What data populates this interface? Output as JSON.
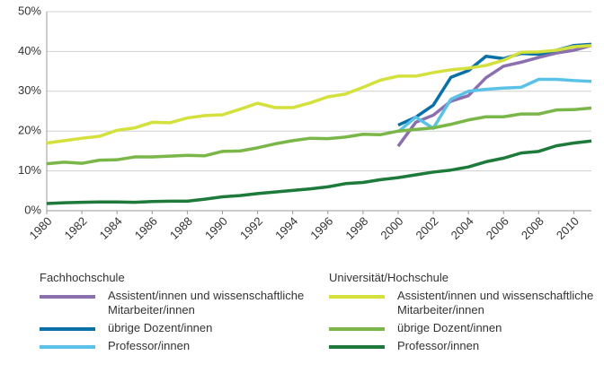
{
  "chart_data": {
    "type": "line",
    "x": [
      1980,
      1981,
      1982,
      1983,
      1984,
      1985,
      1986,
      1987,
      1988,
      1989,
      1990,
      1991,
      1992,
      1993,
      1994,
      1995,
      1996,
      1997,
      1998,
      1999,
      2000,
      2001,
      2002,
      2003,
      2004,
      2005,
      2006,
      2007,
      2008,
      2009,
      2010,
      2011
    ],
    "xlim": [
      1980,
      2011
    ],
    "xticks": [
      1980,
      1982,
      1984,
      1986,
      1988,
      1990,
      1992,
      1994,
      1996,
      1998,
      2000,
      2002,
      2004,
      2006,
      2008,
      2010
    ],
    "ylim": [
      0,
      50
    ],
    "yticks": [
      {
        "value": 0,
        "label": "0%"
      },
      {
        "value": 10,
        "label": "10%"
      },
      {
        "value": 20,
        "label": "20%"
      },
      {
        "value": 30,
        "label": "30%"
      },
      {
        "value": 40,
        "label": "40%"
      },
      {
        "value": 50,
        "label": "50%"
      }
    ],
    "grid": true,
    "series_groups": [
      {
        "name": "Fachhochschule",
        "series": [
          {
            "name": "Assistent/innen und wissenschaftliche Mitarbeiter/innen",
            "color": "#8b6fae",
            "values": [
              null,
              null,
              null,
              null,
              null,
              null,
              null,
              null,
              null,
              null,
              null,
              null,
              null,
              null,
              null,
              null,
              null,
              null,
              null,
              null,
              16.2,
              22.2,
              24,
              27.5,
              28.9,
              33.4,
              36.3,
              37.3,
              38.5,
              39.6,
              40.3,
              41.5
            ]
          },
          {
            "name": "übrige Dozent/innen",
            "color": "#0a71a8",
            "values": [
              null,
              null,
              null,
              null,
              null,
              null,
              null,
              null,
              null,
              null,
              null,
              null,
              null,
              null,
              null,
              null,
              null,
              null,
              null,
              null,
              21.5,
              23.5,
              26.5,
              33.5,
              35.2,
              38.8,
              38.2,
              39.5,
              39.3,
              40.3,
              41.5,
              41.8
            ]
          },
          {
            "name": "Professor/innen",
            "color": "#5bc2e7",
            "values": [
              null,
              null,
              null,
              null,
              null,
              null,
              null,
              null,
              null,
              null,
              null,
              null,
              null,
              null,
              null,
              null,
              null,
              null,
              null,
              null,
              19.8,
              23.5,
              20.7,
              28,
              30,
              30.5,
              30.8,
              31,
              33,
              33,
              32.7,
              32.5
            ]
          }
        ]
      },
      {
        "name": "Universität/Hochschule",
        "series": [
          {
            "name": "Assistent/innen und wissenschaftliche Mitarbeiter/innen",
            "color": "#d4e03c",
            "values": [
              17,
              17.6,
              18.2,
              18.7,
              20.2,
              20.8,
              22.2,
              22.1,
              23.3,
              23.9,
              24.1,
              25.5,
              27,
              25.9,
              25.9,
              27.1,
              28.6,
              29.3,
              31,
              32.8,
              33.8,
              33.8,
              34.7,
              35.4,
              35.8,
              36.5,
              37.8,
              39.8,
              39.9,
              40.3,
              41.2,
              41.5
            ]
          },
          {
            "name": "übrige Dozent/innen",
            "color": "#7ab648",
            "values": [
              11.8,
              12.2,
              11.9,
              12.7,
              12.8,
              13.5,
              13.5,
              13.7,
              13.9,
              13.8,
              14.9,
              15,
              15.8,
              16.8,
              17.6,
              18.2,
              18.1,
              18.5,
              19.2,
              19.1,
              20,
              20.4,
              20.8,
              21.7,
              22.8,
              23.6,
              23.6,
              24.3,
              24.3,
              25.3,
              25.4,
              25.8
            ]
          },
          {
            "name": "Professor/innen",
            "color": "#1d7a3a",
            "values": [
              1.8,
              2.0,
              2.1,
              2.2,
              2.2,
              2.1,
              2.3,
              2.4,
              2.4,
              2.9,
              3.5,
              3.8,
              4.3,
              4.7,
              5.1,
              5.5,
              6,
              6.8,
              7.1,
              7.8,
              8.3,
              9,
              9.7,
              10.2,
              11,
              12.3,
              13.2,
              14.5,
              14.9,
              16.3,
              17,
              17.5
            ]
          }
        ]
      }
    ]
  }
}
